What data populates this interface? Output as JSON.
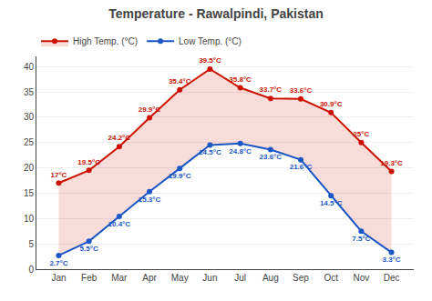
{
  "chart_data": {
    "type": "line",
    "title": "Temperature - Rawalpindi, Pakistan",
    "categories": [
      "Jan",
      "Feb",
      "Mar",
      "Apr",
      "May",
      "Jun",
      "Jul",
      "Aug",
      "Sep",
      "Oct",
      "Nov",
      "Dec"
    ],
    "series": [
      {
        "name": "Low Temp. (°C)",
        "color": "#1a56c4",
        "marker": "circle",
        "values": [
          2.7,
          5.5,
          10.4,
          15.3,
          19.9,
          24.5,
          24.8,
          23.6,
          21.6,
          14.5,
          7.5,
          3.3
        ],
        "value_labels": [
          "2.7°C",
          "5.5°C",
          "10.4°C",
          "15.3°C",
          "19.9°C",
          "24.5°C",
          "24.8°C",
          "23.6°C",
          "21.6°C",
          "14.5°C",
          "7.5°C",
          "3.3°C"
        ]
      },
      {
        "name": "High Temp. (°C)",
        "color": "#cc1100",
        "marker": "circle",
        "values": [
          17.0,
          19.5,
          24.2,
          29.9,
          35.4,
          39.5,
          35.8,
          33.7,
          33.6,
          30.9,
          25.0,
          19.3
        ],
        "value_labels": [
          "17°C",
          "19.5°C",
          "24.2°C",
          "29.9°C",
          "35.4°C",
          "39.5°C",
          "35.8°C",
          "33.7°C",
          "33.6°C",
          "30.9°C",
          "25°C",
          "19.3°C"
        ]
      }
    ],
    "ylim": [
      0,
      42
    ],
    "yticks": [
      0,
      5,
      10,
      15,
      20,
      25,
      30,
      35,
      40
    ],
    "grid": true,
    "legend": "upper left",
    "data_labels": true
  }
}
